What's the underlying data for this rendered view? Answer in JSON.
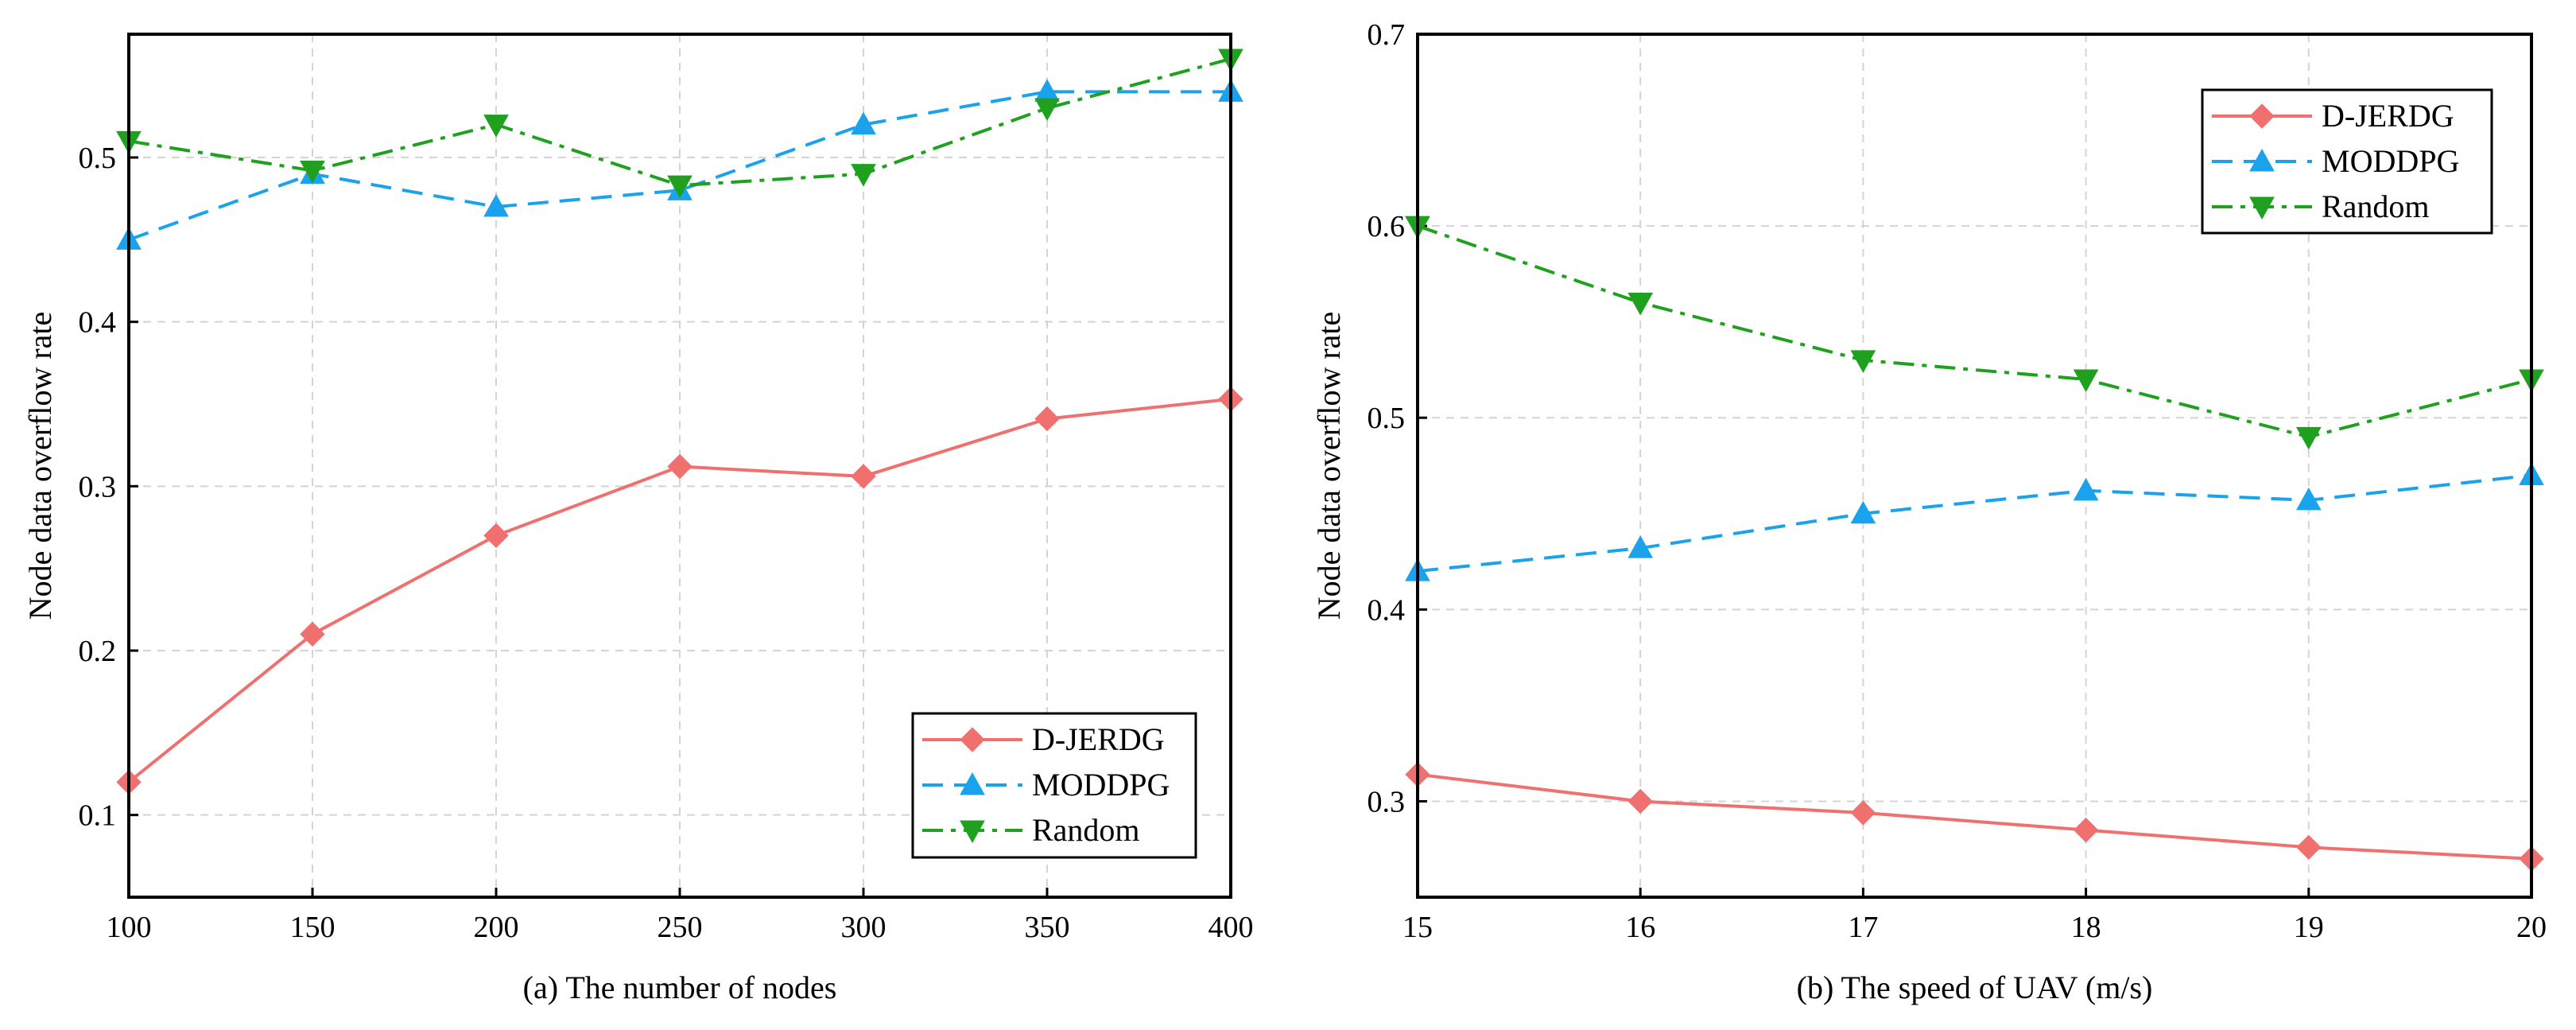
{
  "chart_data": [
    {
      "type": "line",
      "caption": "(a) The number of nodes",
      "xlabel": "",
      "ylabel": "Node data overflow rate",
      "x": [
        100,
        150,
        200,
        250,
        300,
        350,
        400
      ],
      "xlim": [
        100,
        400
      ],
      "ylim": [
        0.05,
        0.575
      ],
      "xticks": [
        "100",
        "150",
        "200",
        "250",
        "300",
        "350",
        "400"
      ],
      "xtick_values": [
        100,
        150,
        200,
        250,
        300,
        350,
        400
      ],
      "yticks": [
        "0.1",
        "0.2",
        "0.3",
        "0.4",
        "0.5"
      ],
      "ytick_values": [
        0.1,
        0.2,
        0.3,
        0.4,
        0.5
      ],
      "grid": true,
      "legend_position": "bottom-right",
      "series": [
        {
          "name": "D-JERDG",
          "color": "#f07070",
          "marker": "diamond",
          "dash": "solid",
          "values": [
            0.12,
            0.21,
            0.27,
            0.312,
            0.306,
            0.341,
            0.353
          ]
        },
        {
          "name": "MODDPG",
          "color": "#1aa3ec",
          "marker": "triangle-up",
          "dash": "dashed",
          "values": [
            0.45,
            0.49,
            0.47,
            0.48,
            0.52,
            0.54,
            0.54
          ]
        },
        {
          "name": "Random",
          "color": "#1fa01f",
          "marker": "triangle-down",
          "dash": "dashdot",
          "values": [
            0.51,
            0.492,
            0.52,
            0.483,
            0.49,
            0.53,
            0.56
          ]
        }
      ]
    },
    {
      "type": "line",
      "caption": "(b) The speed of UAV (m/s)",
      "xlabel": "",
      "ylabel": "Node data overflow rate",
      "x": [
        15,
        16,
        17,
        18,
        19,
        20
      ],
      "xlim": [
        15,
        20
      ],
      "ylim": [
        0.25,
        0.7
      ],
      "xticks": [
        "15",
        "16",
        "17",
        "18",
        "19",
        "20"
      ],
      "xtick_values": [
        15,
        16,
        17,
        18,
        19,
        20
      ],
      "yticks": [
        "0.3",
        "0.4",
        "0.5",
        "0.6",
        "0.7"
      ],
      "ytick_values": [
        0.3,
        0.4,
        0.5,
        0.6,
        0.7
      ],
      "grid": true,
      "legend_position": "top-right",
      "series": [
        {
          "name": "D-JERDG",
          "color": "#f07070",
          "marker": "diamond",
          "dash": "solid",
          "values": [
            0.314,
            0.3,
            0.294,
            0.285,
            0.276,
            0.27
          ]
        },
        {
          "name": "MODDPG",
          "color": "#1aa3ec",
          "marker": "triangle-up",
          "dash": "dashed",
          "values": [
            0.42,
            0.432,
            0.45,
            0.462,
            0.457,
            0.47
          ]
        },
        {
          "name": "Random",
          "color": "#1fa01f",
          "marker": "triangle-down",
          "dash": "dashdot",
          "values": [
            0.6,
            0.56,
            0.53,
            0.52,
            0.49,
            0.52
          ]
        }
      ]
    }
  ]
}
